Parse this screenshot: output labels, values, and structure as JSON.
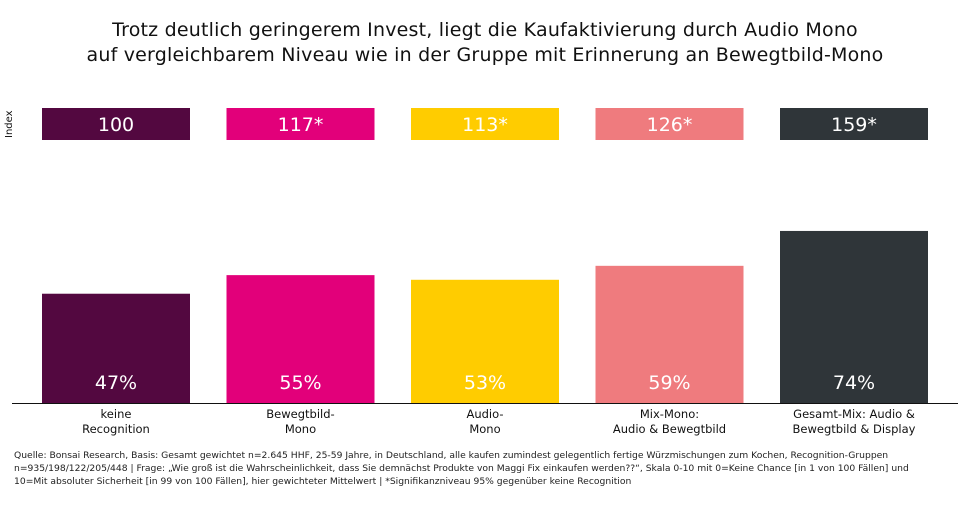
{
  "title_lines": [
    "Trotz deutlich geringerem Invest, liegt die Kaufaktivierung durch Audio Mono",
    "auf vergleichbarem Niveau wie in der Gruppe mit Erinnerung an Bewegtbild-Mono"
  ],
  "index_axis_label": "Index",
  "chart_data": {
    "type": "bar",
    "title": "Trotz deutlich geringerem Invest, liegt die Kaufaktivierung durch Audio Mono auf vergleichbarem Niveau wie in der Gruppe mit Erinnerung an Bewegtbild-Mono",
    "categories": [
      [
        "keine",
        "Recognition"
      ],
      [
        "Bewegtbild-",
        "Mono"
      ],
      [
        "Audio-",
        "Mono"
      ],
      [
        "Mix-Mono:",
        "Audio & Bewegtbild"
      ],
      [
        "Gesamt-Mix: Audio &",
        "Bewegtbild & Display"
      ]
    ],
    "values": [
      47,
      55,
      53,
      59,
      74
    ],
    "value_labels": [
      "47%",
      "55%",
      "53%",
      "59%",
      "74%"
    ],
    "index_values": [
      100,
      117,
      113,
      126,
      159
    ],
    "index_labels": [
      "100",
      "117*",
      "113*",
      "126*",
      "159*"
    ],
    "colors": [
      "#530840",
      "#e2007a",
      "#ffcc00",
      "#ef7b7e",
      "#2f3539"
    ],
    "ylim": [
      0,
      100
    ],
    "grid": false,
    "legend": "none"
  },
  "footer_lines": [
    "Quelle: Bonsai Research, Basis: Gesamt gewichtet n=2.645 HHF, 25-59 Jahre, in Deutschland, alle kaufen zumindest gelegentlich fertige Würzmischungen zum Kochen, Recognition-Gruppen",
    "n=935/198/122/205/448 | Frage: „Wie groß ist die Wahrscheinlichkeit, dass Sie demnächst Produkte von Maggi Fix einkaufen werden??“, Skala 0-10 mit 0=Keine Chance [in 1 von 100 Fällen] und",
    "10=Mit absoluter Sicherheit [in 99 von 100 Fällen], hier gewichteter Mittelwert | *Signifikanzniveau 95% gegenüber keine Recognition"
  ]
}
